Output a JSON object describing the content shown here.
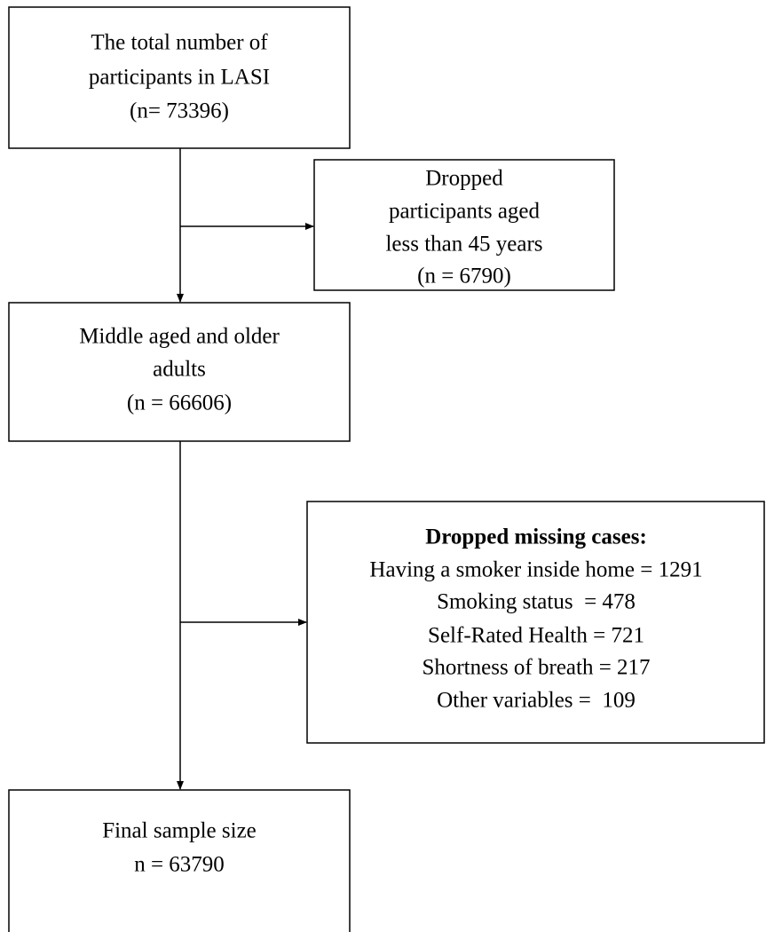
{
  "nodes": [
    {
      "lines": [
        "The total number of",
        "participants in LASI",
        "(n= 73396)"
      ]
    },
    {
      "lines": [
        "Dropped",
        "participants aged",
        "less than 45 years",
        "(n = 6790)"
      ]
    },
    {
      "lines": [
        "Middle aged and older",
        "adults",
        "(n = 66606)"
      ]
    },
    {
      "title": "Dropped missing cases:",
      "lines": [
        "Having a smoker inside home = 1291",
        "Smoking status  = 478",
        "Self-Rated Health = 721",
        "Shortness of breath = 217",
        "Other variables =  109"
      ]
    },
    {
      "lines": [
        "Final sample size",
        "n = 63790"
      ]
    }
  ]
}
